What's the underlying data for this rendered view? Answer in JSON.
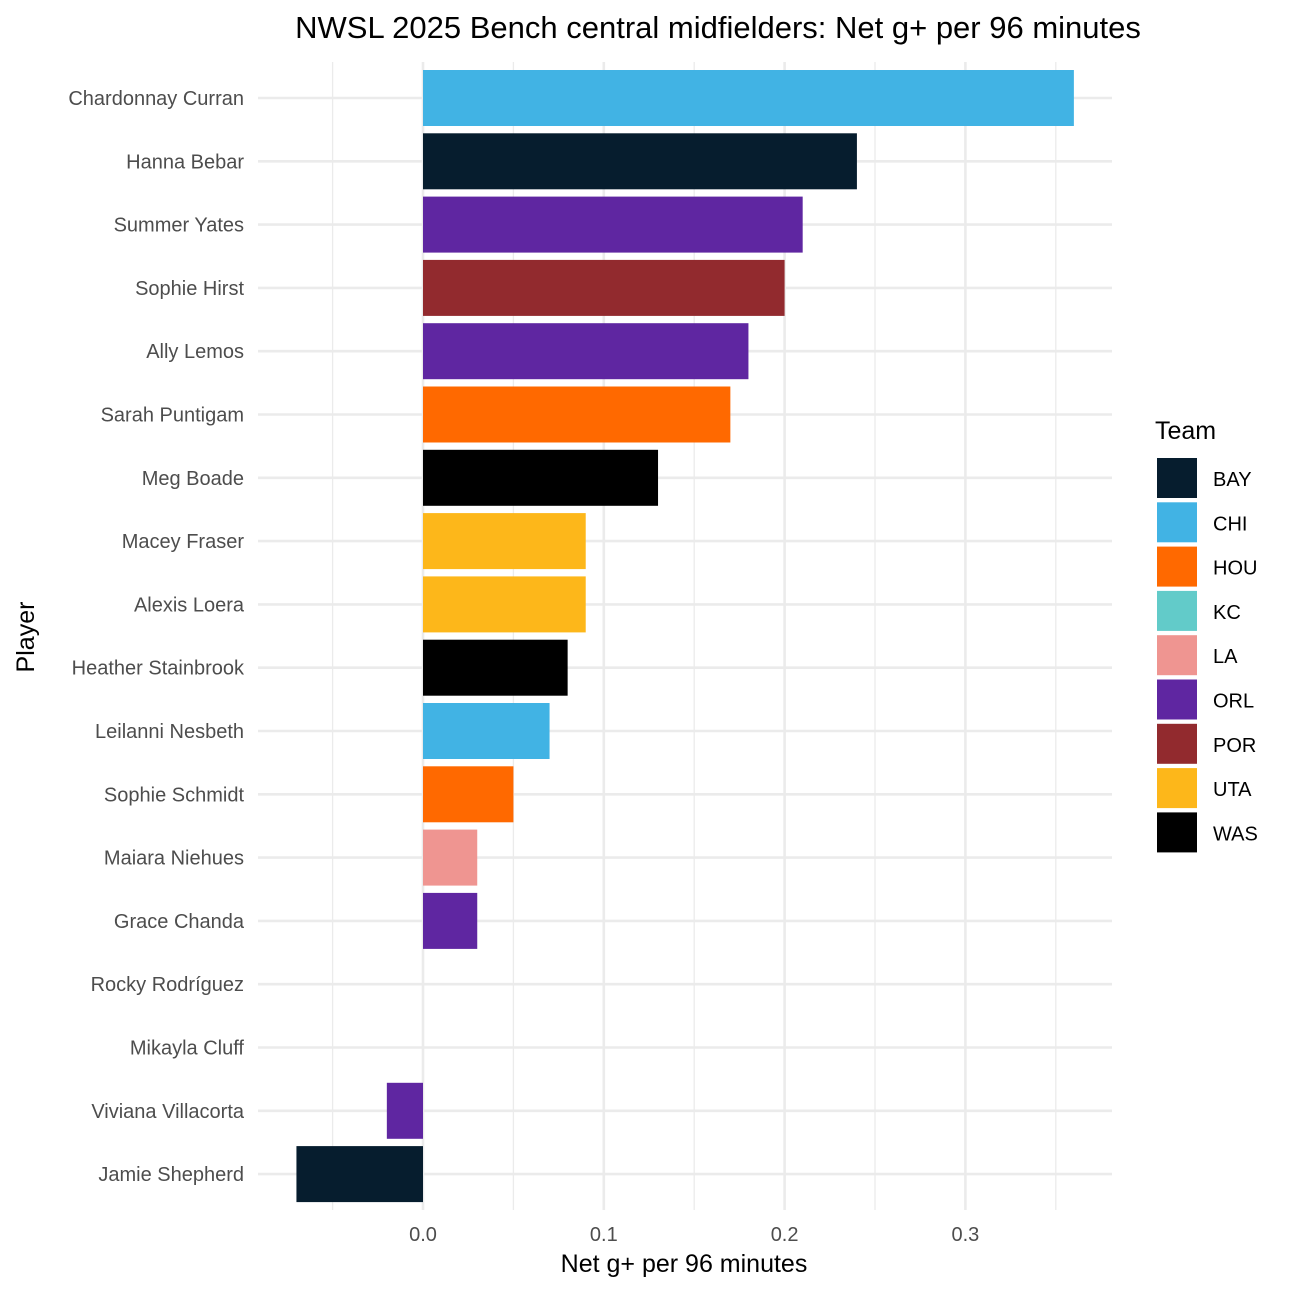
{
  "chart_data": {
    "type": "bar",
    "orientation": "horizontal",
    "title": "NWSL 2025 Bench central midfielders: Net g+ per 96 minutes",
    "xlabel": "Net g+ per 96 minutes",
    "ylabel": "Player",
    "xlim": [
      -0.09,
      0.38
    ],
    "x_ticks": [
      0.0,
      0.1,
      0.2,
      0.3
    ],
    "x_tick_labels": [
      "0.0",
      "0.1",
      "0.2",
      "0.3"
    ],
    "x_minor_ticks": [
      -0.05,
      0.05,
      0.15,
      0.25,
      0.35
    ],
    "grid": true,
    "legend": {
      "title": "Team",
      "position": "right",
      "entries": [
        {
          "label": "BAY",
          "color": "#061d2e"
        },
        {
          "label": "CHI",
          "color": "#41b3e4"
        },
        {
          "label": "HOU",
          "color": "#ff6900"
        },
        {
          "label": "KC",
          "color": "#62cbc9"
        },
        {
          "label": "LA",
          "color": "#ef9591"
        },
        {
          "label": "ORL",
          "color": "#5f26a1"
        },
        {
          "label": "POR",
          "color": "#922a2e"
        },
        {
          "label": "UTA",
          "color": "#fdb71a"
        },
        {
          "label": "WAS",
          "color": "#000000"
        }
      ]
    },
    "bars": [
      {
        "player": "Chardonnay Curran",
        "team": "CHI",
        "value": 0.36
      },
      {
        "player": "Hanna Bebar",
        "team": "BAY",
        "value": 0.24
      },
      {
        "player": "Summer Yates",
        "team": "ORL",
        "value": 0.21
      },
      {
        "player": "Sophie Hirst",
        "team": "POR",
        "value": 0.2
      },
      {
        "player": "Ally Lemos",
        "team": "ORL",
        "value": 0.18
      },
      {
        "player": "Sarah Puntigam",
        "team": "HOU",
        "value": 0.17
      },
      {
        "player": "Meg Boade",
        "team": "WAS",
        "value": 0.13
      },
      {
        "player": "Macey Fraser",
        "team": "UTA",
        "value": 0.09
      },
      {
        "player": "Alexis Loera",
        "team": "UTA",
        "value": 0.09
      },
      {
        "player": "Heather Stainbrook",
        "team": "WAS",
        "value": 0.08
      },
      {
        "player": "Leilanni Nesbeth",
        "team": "CHI",
        "value": 0.07
      },
      {
        "player": "Sophie Schmidt",
        "team": "HOU",
        "value": 0.05
      },
      {
        "player": "Maiara Niehues",
        "team": "LA",
        "value": 0.03
      },
      {
        "player": "Grace Chanda",
        "team": "ORL",
        "value": 0.03
      },
      {
        "player": "Rocky Rodríguez",
        "team": "KC",
        "value": 0.0
      },
      {
        "player": "Mikayla Cluff",
        "team": "UTA",
        "value": 0.0
      },
      {
        "player": "Viviana Villacorta",
        "team": "ORL",
        "value": -0.02
      },
      {
        "player": "Jamie Shepherd",
        "team": "BAY",
        "value": -0.07
      }
    ]
  }
}
